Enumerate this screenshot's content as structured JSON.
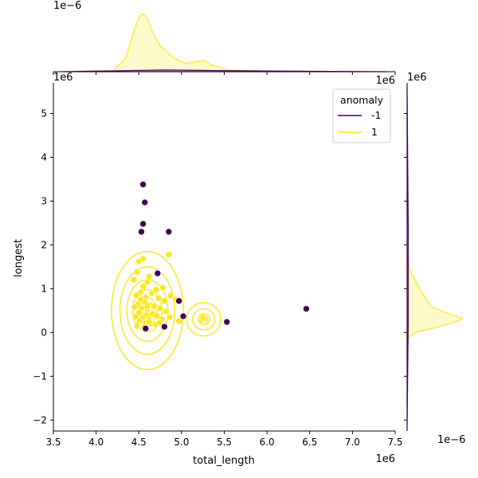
{
  "chart_data": {
    "type": "scatter",
    "subtype": "jointplot-kde",
    "xlabel": "total_length",
    "ylabel": "longest",
    "x_scale_label": "1e6",
    "y_scale_label": "1e6",
    "marg_x_scale_label": "1e−6",
    "marg_y_scale_label": "1e−6",
    "xlim": [
      3.5,
      7.5
    ],
    "ylim": [
      -2.25,
      5.7
    ],
    "xticks": [
      "3.5",
      "4.0",
      "4.5",
      "5.0",
      "5.5",
      "6.0",
      "6.5",
      "7.0",
      "7.5"
    ],
    "yticks": [
      "−2",
      "−1",
      "0",
      "1",
      "2",
      "3",
      "4",
      "5"
    ],
    "legend": {
      "title": "anomaly",
      "location": "top-right",
      "entries": [
        {
          "label": "-1",
          "color": "#440154"
        },
        {
          "label": "1",
          "color": "#fde725"
        }
      ]
    },
    "series": [
      {
        "name": "-1",
        "color": "#440154",
        "x": [
          4.55,
          4.57,
          4.55,
          4.53,
          4.85,
          4.72,
          4.97,
          5.02,
          4.8,
          4.58,
          5.53,
          6.46
        ],
        "y": [
          3.38,
          2.97,
          2.48,
          2.3,
          2.3,
          1.35,
          0.72,
          0.37,
          0.13,
          0.09,
          0.24,
          0.54
        ]
      },
      {
        "name": "1",
        "color": "#fde725",
        "x": [
          4.85,
          4.55,
          4.5,
          4.48,
          4.62,
          4.44,
          4.6,
          4.55,
          4.7,
          4.78,
          4.65,
          4.52,
          4.47,
          4.58,
          4.73,
          4.8,
          4.57,
          4.49,
          4.63,
          4.68,
          4.45,
          4.53,
          4.6,
          4.75,
          4.82,
          4.5,
          4.66,
          4.59,
          4.71,
          4.46,
          4.54,
          4.62,
          4.77,
          4.86,
          4.51,
          4.58,
          4.64,
          4.7,
          4.48,
          4.56,
          4.62,
          4.74,
          4.93,
          4.97,
          5.23,
          5.28,
          5.25,
          4.87,
          4.52,
          4.6
        ],
        "y": [
          1.78,
          1.68,
          1.62,
          1.38,
          1.28,
          1.2,
          1.15,
          1.05,
          0.98,
          1.02,
          0.9,
          0.92,
          0.85,
          0.8,
          0.78,
          0.72,
          0.7,
          0.65,
          0.62,
          0.6,
          0.58,
          0.55,
          0.52,
          0.55,
          0.48,
          0.45,
          0.42,
          0.4,
          0.38,
          0.36,
          0.33,
          0.3,
          0.3,
          0.35,
          0.26,
          0.22,
          0.2,
          0.18,
          0.15,
          0.12,
          0.25,
          0.22,
          0.75,
          0.26,
          0.28,
          0.3,
          0.33,
          0.84,
          0.75,
          0.6
        ]
      }
    ],
    "density_contours": [
      {
        "cx": 4.6,
        "cy": 0.5,
        "rx": [
          0.42,
          0.32,
          0.24,
          0.17,
          0.11,
          0.06
        ],
        "ry": [
          1.35,
          1.0,
          0.7,
          0.48,
          0.3,
          0.17
        ]
      },
      {
        "cx": 5.26,
        "cy": 0.3,
        "rx": [
          0.2,
          0.13,
          0.07
        ],
        "ry": [
          0.38,
          0.24,
          0.12
        ]
      }
    ],
    "marginal_x": {
      "series": [
        {
          "name": "1",
          "x": [
            3.6,
            4.2,
            4.35,
            4.45,
            4.52,
            4.56,
            4.6,
            4.66,
            4.75,
            4.9,
            5.05,
            5.18,
            5.26,
            5.35,
            5.55,
            6.0,
            7.4
          ],
          "y": [
            0.0,
            0.02,
            0.25,
            0.75,
            1.0,
            1.0,
            0.93,
            0.7,
            0.45,
            0.25,
            0.14,
            0.18,
            0.2,
            0.12,
            0.03,
            0.01,
            0.0
          ]
        },
        {
          "name": "-1",
          "x": [
            3.6,
            4.4,
            4.8,
            5.4,
            6.2,
            6.5,
            7.4
          ],
          "y": [
            0.0,
            0.02,
            0.03,
            0.02,
            0.01,
            0.008,
            0.0
          ]
        }
      ]
    },
    "marginal_y": {
      "series": [
        {
          "name": "1",
          "y": [
            -0.15,
            0.0,
            0.12,
            0.25,
            0.32,
            0.45,
            0.6,
            0.75,
            0.9,
            1.1,
            1.35,
            1.6,
            1.85
          ],
          "x": [
            0.0,
            0.15,
            0.55,
            0.9,
            1.0,
            0.7,
            0.42,
            0.35,
            0.27,
            0.18,
            0.08,
            0.02,
            0.0
          ]
        },
        {
          "name": "-1",
          "y": [
            -2.25,
            -1.0,
            0.2,
            2.5,
            4.0,
            5.7
          ],
          "x": [
            0.0,
            0.01,
            0.02,
            0.02,
            0.01,
            0.0
          ]
        }
      ]
    }
  }
}
